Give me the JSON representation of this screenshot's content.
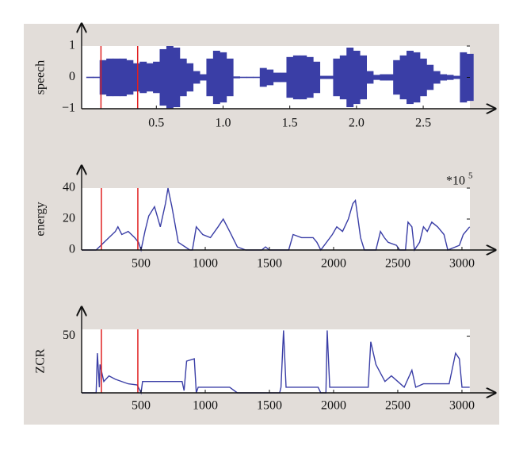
{
  "chart_data": [
    {
      "type": "area",
      "ylabel": "speech",
      "color": "#3a3ea6",
      "marker_color": "#e02020",
      "xlim": [
        -0.06,
        2.85
      ],
      "ylim": [
        -1,
        1
      ],
      "xticks": [
        0.5,
        {
          "value": 1,
          "label": "1.0"
        },
        1.5,
        {
          "value": 2,
          "label": "2.0"
        },
        2.5
      ],
      "yticks": [
        1,
        0,
        {
          "value": -1,
          "label": "−1"
        }
      ],
      "vlines": [
        0.085,
        0.36
      ],
      "x": [
        0,
        0.05,
        0.1,
        0.15,
        0.2,
        0.25,
        0.3,
        0.35,
        0.4,
        0.45,
        0.5,
        0.55,
        0.6,
        0.65,
        0.7,
        0.75,
        0.8,
        0.85,
        0.9,
        0.95,
        1.0,
        1.05,
        1.1,
        1.15,
        1.2,
        1.25,
        1.3,
        1.35,
        1.4,
        1.45,
        1.5,
        1.55,
        1.6,
        1.65,
        1.7,
        1.75,
        1.8,
        1.85,
        1.9,
        1.95,
        2.0,
        2.05,
        2.1,
        2.15,
        2.2,
        2.25,
        2.3,
        2.35,
        2.4,
        2.45,
        2.5,
        2.55,
        2.6,
        2.65,
        2.7,
        2.75,
        2.8,
        2.85
      ],
      "values": [
        0.02,
        0.02,
        0.55,
        0.6,
        0.6,
        0.6,
        0.55,
        0.45,
        0.5,
        0.45,
        0.5,
        0.9,
        1.0,
        0.95,
        0.6,
        0.45,
        0.2,
        0.1,
        0.6,
        0.85,
        0.8,
        0.6,
        0.03,
        0.02,
        0.02,
        0.02,
        0.3,
        0.25,
        0.15,
        0.15,
        0.65,
        0.7,
        0.7,
        0.65,
        0.5,
        0.05,
        0.05,
        0.6,
        0.7,
        0.95,
        0.85,
        0.7,
        0.2,
        0.08,
        0.1,
        0.1,
        0.55,
        0.7,
        0.85,
        0.8,
        0.6,
        0.4,
        0.2,
        0.1,
        0.08,
        0.05,
        0.8,
        0.75
      ]
    },
    {
      "type": "line",
      "ylabel": "energy",
      "color": "#3a3ea6",
      "marker_color": "#e02020",
      "annotation": "*10",
      "annotation_exponent": "5",
      "xlim": [
        37,
        3062
      ],
      "ylim": [
        0,
        40
      ],
      "xticks": [
        500,
        1000,
        1500,
        2000,
        2500,
        3000
      ],
      "yticks": [
        0,
        20,
        40
      ],
      "vlines": [
        191,
        475
      ],
      "x": [
        37,
        150,
        250,
        300,
        320,
        350,
        400,
        450,
        480,
        500,
        530,
        560,
        605,
        650,
        690,
        710,
        740,
        790,
        880,
        900,
        930,
        980,
        1040,
        1100,
        1140,
        1190,
        1250,
        1315,
        1440,
        1470,
        1500,
        1650,
        1685,
        1750,
        1840,
        1870,
        1900,
        1990,
        2025,
        2070,
        2115,
        2150,
        2170,
        2190,
        2210,
        2240,
        2330,
        2365,
        2395,
        2425,
        2490,
        2515,
        2560,
        2580,
        2610,
        2630,
        2670,
        2700,
        2730,
        2765,
        2810,
        2860,
        2890,
        2980,
        3010,
        3060
      ],
      "values": [
        0,
        0,
        8,
        12,
        15,
        10,
        12,
        8,
        5,
        0,
        12,
        22,
        28,
        15,
        30,
        40,
        28,
        5,
        0,
        0,
        15,
        10,
        8,
        15,
        20,
        12,
        2,
        0,
        0,
        2,
        0,
        0,
        10,
        8,
        8,
        5,
        0,
        10,
        15,
        12,
        20,
        30,
        32,
        20,
        8,
        0,
        0,
        12,
        8,
        5,
        3,
        0,
        0,
        18,
        15,
        0,
        5,
        15,
        12,
        18,
        15,
        10,
        0,
        3,
        10,
        15
      ]
    },
    {
      "type": "line",
      "ylabel": "ZCR",
      "color": "#3a3ea6",
      "marker_color": "#e02020",
      "xlim": [
        37,
        3062
      ],
      "ylim": [
        0,
        56
      ],
      "xticks": [
        500,
        1000,
        1500,
        2000,
        2500,
        3000
      ],
      "yticks": [
        50
      ],
      "vlines": [
        191,
        475
      ],
      "x": [
        37,
        150,
        160,
        175,
        180,
        210,
        250,
        300,
        400,
        470,
        500,
        512,
        640,
        820,
        835,
        855,
        915,
        930,
        945,
        1190,
        1250,
        1580,
        1590,
        1610,
        1630,
        1880,
        1900,
        1940,
        1950,
        1970,
        2260,
        2270,
        2290,
        2330,
        2400,
        2450,
        2500,
        2550,
        2610,
        2640,
        2700,
        2900,
        2950,
        2980,
        3000,
        3060
      ],
      "values": [
        0,
        0,
        35,
        5,
        25,
        10,
        15,
        12,
        8,
        7,
        0,
        10,
        10,
        10,
        2,
        28,
        30,
        0,
        5,
        5,
        0,
        0,
        5,
        55,
        5,
        5,
        0,
        0,
        55,
        5,
        5,
        5,
        45,
        25,
        10,
        15,
        10,
        5,
        20,
        5,
        8,
        8,
        35,
        30,
        5,
        5
      ]
    }
  ]
}
